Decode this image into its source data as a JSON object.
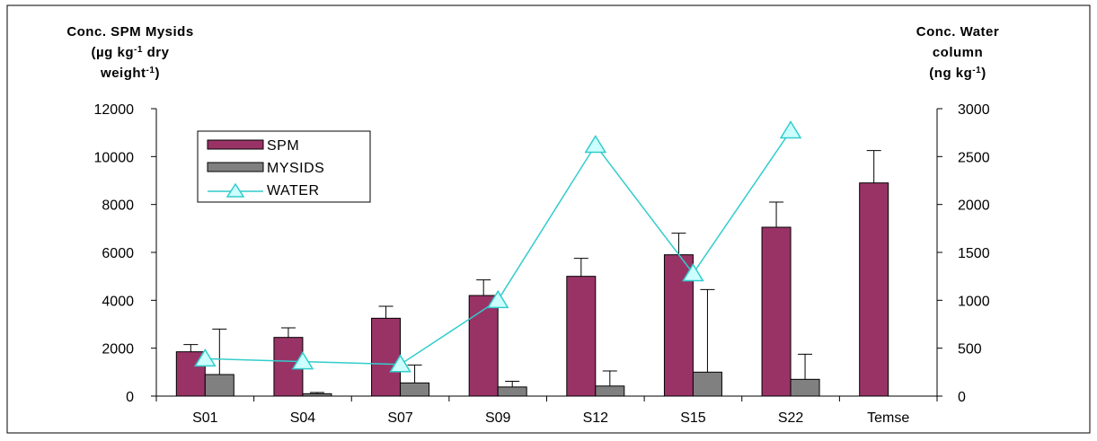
{
  "chart_data": {
    "type": "bar",
    "categories": [
      "S01",
      "S04",
      "S07",
      "S09",
      "S12",
      "S15",
      "S22",
      "Temse"
    ],
    "left_axis": {
      "label_lines": [
        [
          {
            "text": "Conc. SPM Mysids"
          }
        ],
        [
          {
            "text": "(µg kg"
          },
          {
            "text": "-1",
            "sup": true
          },
          {
            "text": " dry"
          }
        ],
        [
          {
            "text": "weight"
          },
          {
            "text": "-1",
            "sup": true
          },
          {
            "text": ")"
          }
        ]
      ],
      "ylim": [
        0,
        12000
      ],
      "ticks": [
        0,
        2000,
        4000,
        6000,
        8000,
        10000,
        12000
      ],
      "tick_labels": [
        "0",
        "2000",
        "4000",
        "6000",
        "8000",
        "10000",
        "12000"
      ]
    },
    "right_axis": {
      "label_lines": [
        [
          {
            "text": "Conc. Water"
          }
        ],
        [
          {
            "text": "column"
          }
        ],
        [
          {
            "text": "(ng kg"
          },
          {
            "text": "-1",
            "sup": true
          },
          {
            "text": ")"
          }
        ]
      ],
      "ylim": [
        0,
        3000
      ],
      "ticks": [
        0,
        500,
        1000,
        1500,
        2000,
        2500,
        3000
      ],
      "tick_labels": [
        "0",
        "500",
        "1000",
        "1500",
        "2000",
        "2500",
        "3000"
      ]
    },
    "series": [
      {
        "name": "SPM",
        "type": "bar",
        "axis": "left",
        "color": "#993366",
        "values": [
          1850,
          2450,
          3250,
          4200,
          5000,
          5900,
          7050,
          8900
        ],
        "error_upper": [
          2150,
          2850,
          3750,
          4850,
          5750,
          6800,
          8100,
          10250
        ]
      },
      {
        "name": "MYSIDS",
        "type": "bar",
        "axis": "left",
        "color": "#808080",
        "values": [
          900,
          100,
          550,
          380,
          420,
          1000,
          700,
          null
        ],
        "error_upper": [
          2800,
          150,
          1300,
          620,
          1050,
          4450,
          1750,
          null
        ]
      },
      {
        "name": "WATER",
        "type": "line",
        "axis": "right",
        "color": "#33CCCC",
        "values": [
          390,
          360,
          330,
          1000,
          2620,
          1280,
          2770,
          null
        ]
      }
    ],
    "legend_position": "top-left",
    "grid": false
  }
}
